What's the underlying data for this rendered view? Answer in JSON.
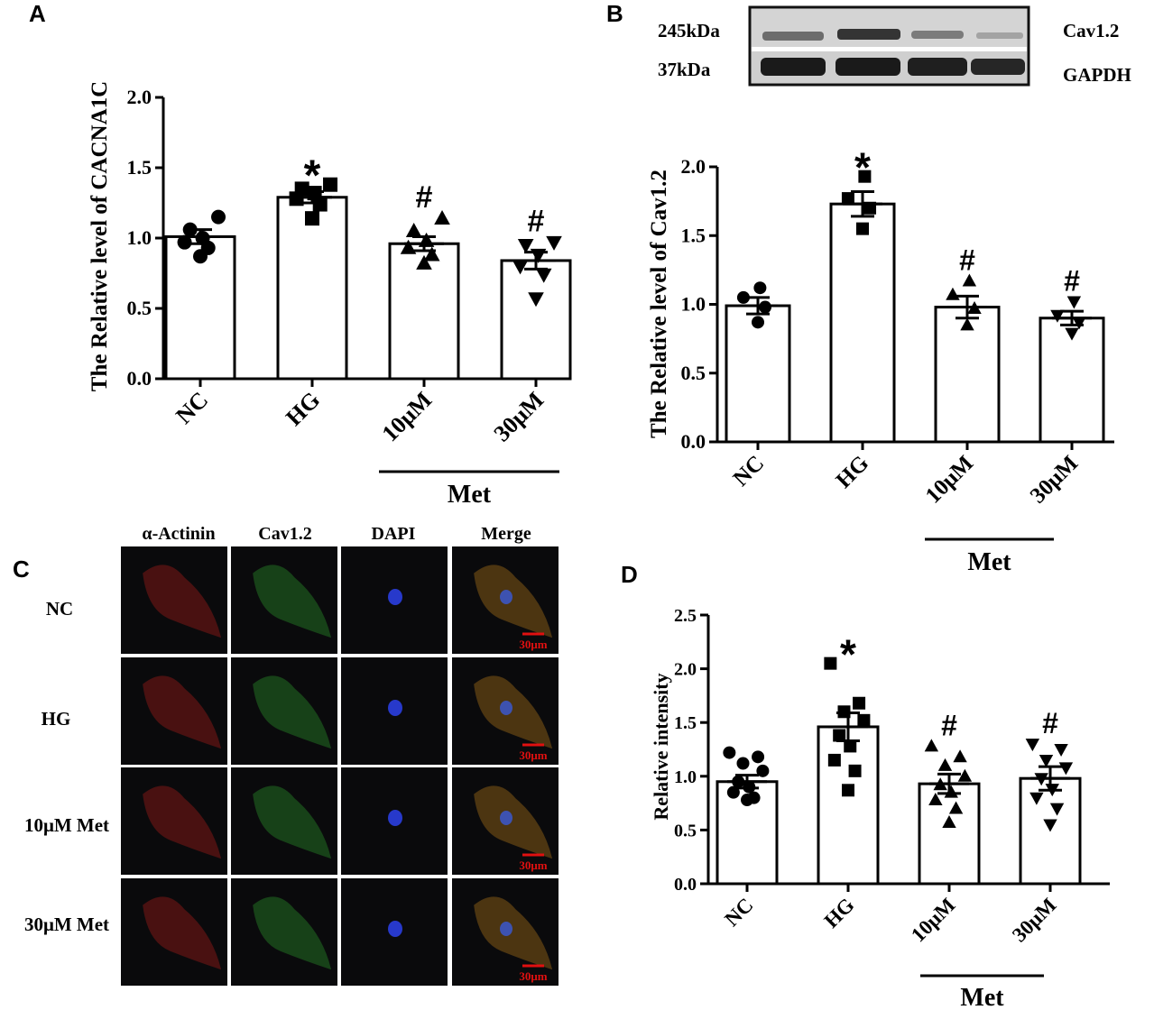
{
  "panels": {
    "A": "A",
    "B": "B",
    "C": "C",
    "D": "D"
  },
  "western_blot": {
    "kda_top": "245kDa",
    "kda_bottom": "37kDa",
    "label_top": "Cav1.2",
    "label_bottom": "GAPDH"
  },
  "micrographs": {
    "column_headers": [
      "α-Actinin",
      "Cav1.2",
      "DAPI",
      "Merge"
    ],
    "row_labels": [
      "NC",
      "HG",
      "10μM Met",
      "30μM Met"
    ],
    "scale_bar_label": "30μm",
    "channel_colors": [
      "#c0201c",
      "#2fa82f",
      "#2a3ee0",
      "#c8861c"
    ]
  },
  "chart_data": [
    {
      "id": "A",
      "type": "bar",
      "ylabel": "The Relative level of CACNA1C",
      "categories": [
        "NC",
        "HG",
        "10μM",
        "30μM"
      ],
      "group_label": "Met",
      "ylim": [
        0,
        2.0
      ],
      "yticks": [
        "0.0",
        "0.5",
        "1.0",
        "1.5",
        "2.0"
      ],
      "values": [
        1.01,
        1.29,
        0.96,
        0.84
      ],
      "sem": [
        0.05,
        0.04,
        0.05,
        0.06
      ],
      "markers": [
        "circle",
        "square",
        "triangle",
        "triangle-down"
      ],
      "significance": [
        "",
        "*",
        "#",
        "#"
      ],
      "points": [
        [
          0.87,
          0.93,
          0.97,
          1.0,
          1.06,
          1.15
        ],
        [
          1.14,
          1.24,
          1.28,
          1.32,
          1.35,
          1.38
        ],
        [
          0.82,
          0.88,
          0.93,
          0.98,
          1.05,
          1.14
        ],
        [
          0.57,
          0.74,
          0.8,
          0.88,
          0.95,
          0.97
        ]
      ]
    },
    {
      "id": "B",
      "type": "bar",
      "ylabel": "The Relative level of Cav1.2",
      "categories": [
        "NC",
        "HG",
        "10μM",
        "30μM"
      ],
      "group_label": "Met",
      "ylim": [
        0,
        2.0
      ],
      "yticks": [
        "0.0",
        "0.5",
        "1.0",
        "1.5",
        "2.0"
      ],
      "values": [
        0.99,
        1.73,
        0.98,
        0.9
      ],
      "sem": [
        0.06,
        0.09,
        0.08,
        0.05
      ],
      "markers": [
        "circle",
        "square",
        "triangle",
        "triangle-down"
      ],
      "significance": [
        "",
        "*",
        "#",
        "#"
      ],
      "points": [
        [
          0.87,
          0.98,
          1.05,
          1.12
        ],
        [
          1.55,
          1.7,
          1.77,
          1.93
        ],
        [
          0.85,
          0.97,
          1.07,
          1.17
        ],
        [
          0.79,
          0.87,
          0.92,
          1.02
        ]
      ]
    },
    {
      "id": "D",
      "type": "bar",
      "ylabel": "Relative intensity",
      "categories": [
        "NC",
        "HG",
        "10μM",
        "30μM"
      ],
      "group_label": "Met",
      "ylim": [
        0,
        2.5
      ],
      "yticks": [
        "0.0",
        "0.5",
        "1.0",
        "1.5",
        "2.0",
        "2.5"
      ],
      "values": [
        0.95,
        1.46,
        0.93,
        0.98
      ],
      "sem": [
        0.06,
        0.13,
        0.09,
        0.11
      ],
      "markers": [
        "circle",
        "square",
        "triangle",
        "triangle-down"
      ],
      "significance": [
        "",
        "*",
        "#",
        "#"
      ],
      "points": [
        [
          0.78,
          0.8,
          0.85,
          0.9,
          0.95,
          1.05,
          1.12,
          1.18,
          1.22
        ],
        [
          0.87,
          1.05,
          1.15,
          1.28,
          1.38,
          1.52,
          1.6,
          1.68,
          2.05
        ],
        [
          0.57,
          0.7,
          0.78,
          0.85,
          0.92,
          1.0,
          1.1,
          1.18,
          1.28
        ],
        [
          0.55,
          0.7,
          0.8,
          0.88,
          0.98,
          1.08,
          1.15,
          1.25,
          1.3
        ]
      ]
    }
  ]
}
